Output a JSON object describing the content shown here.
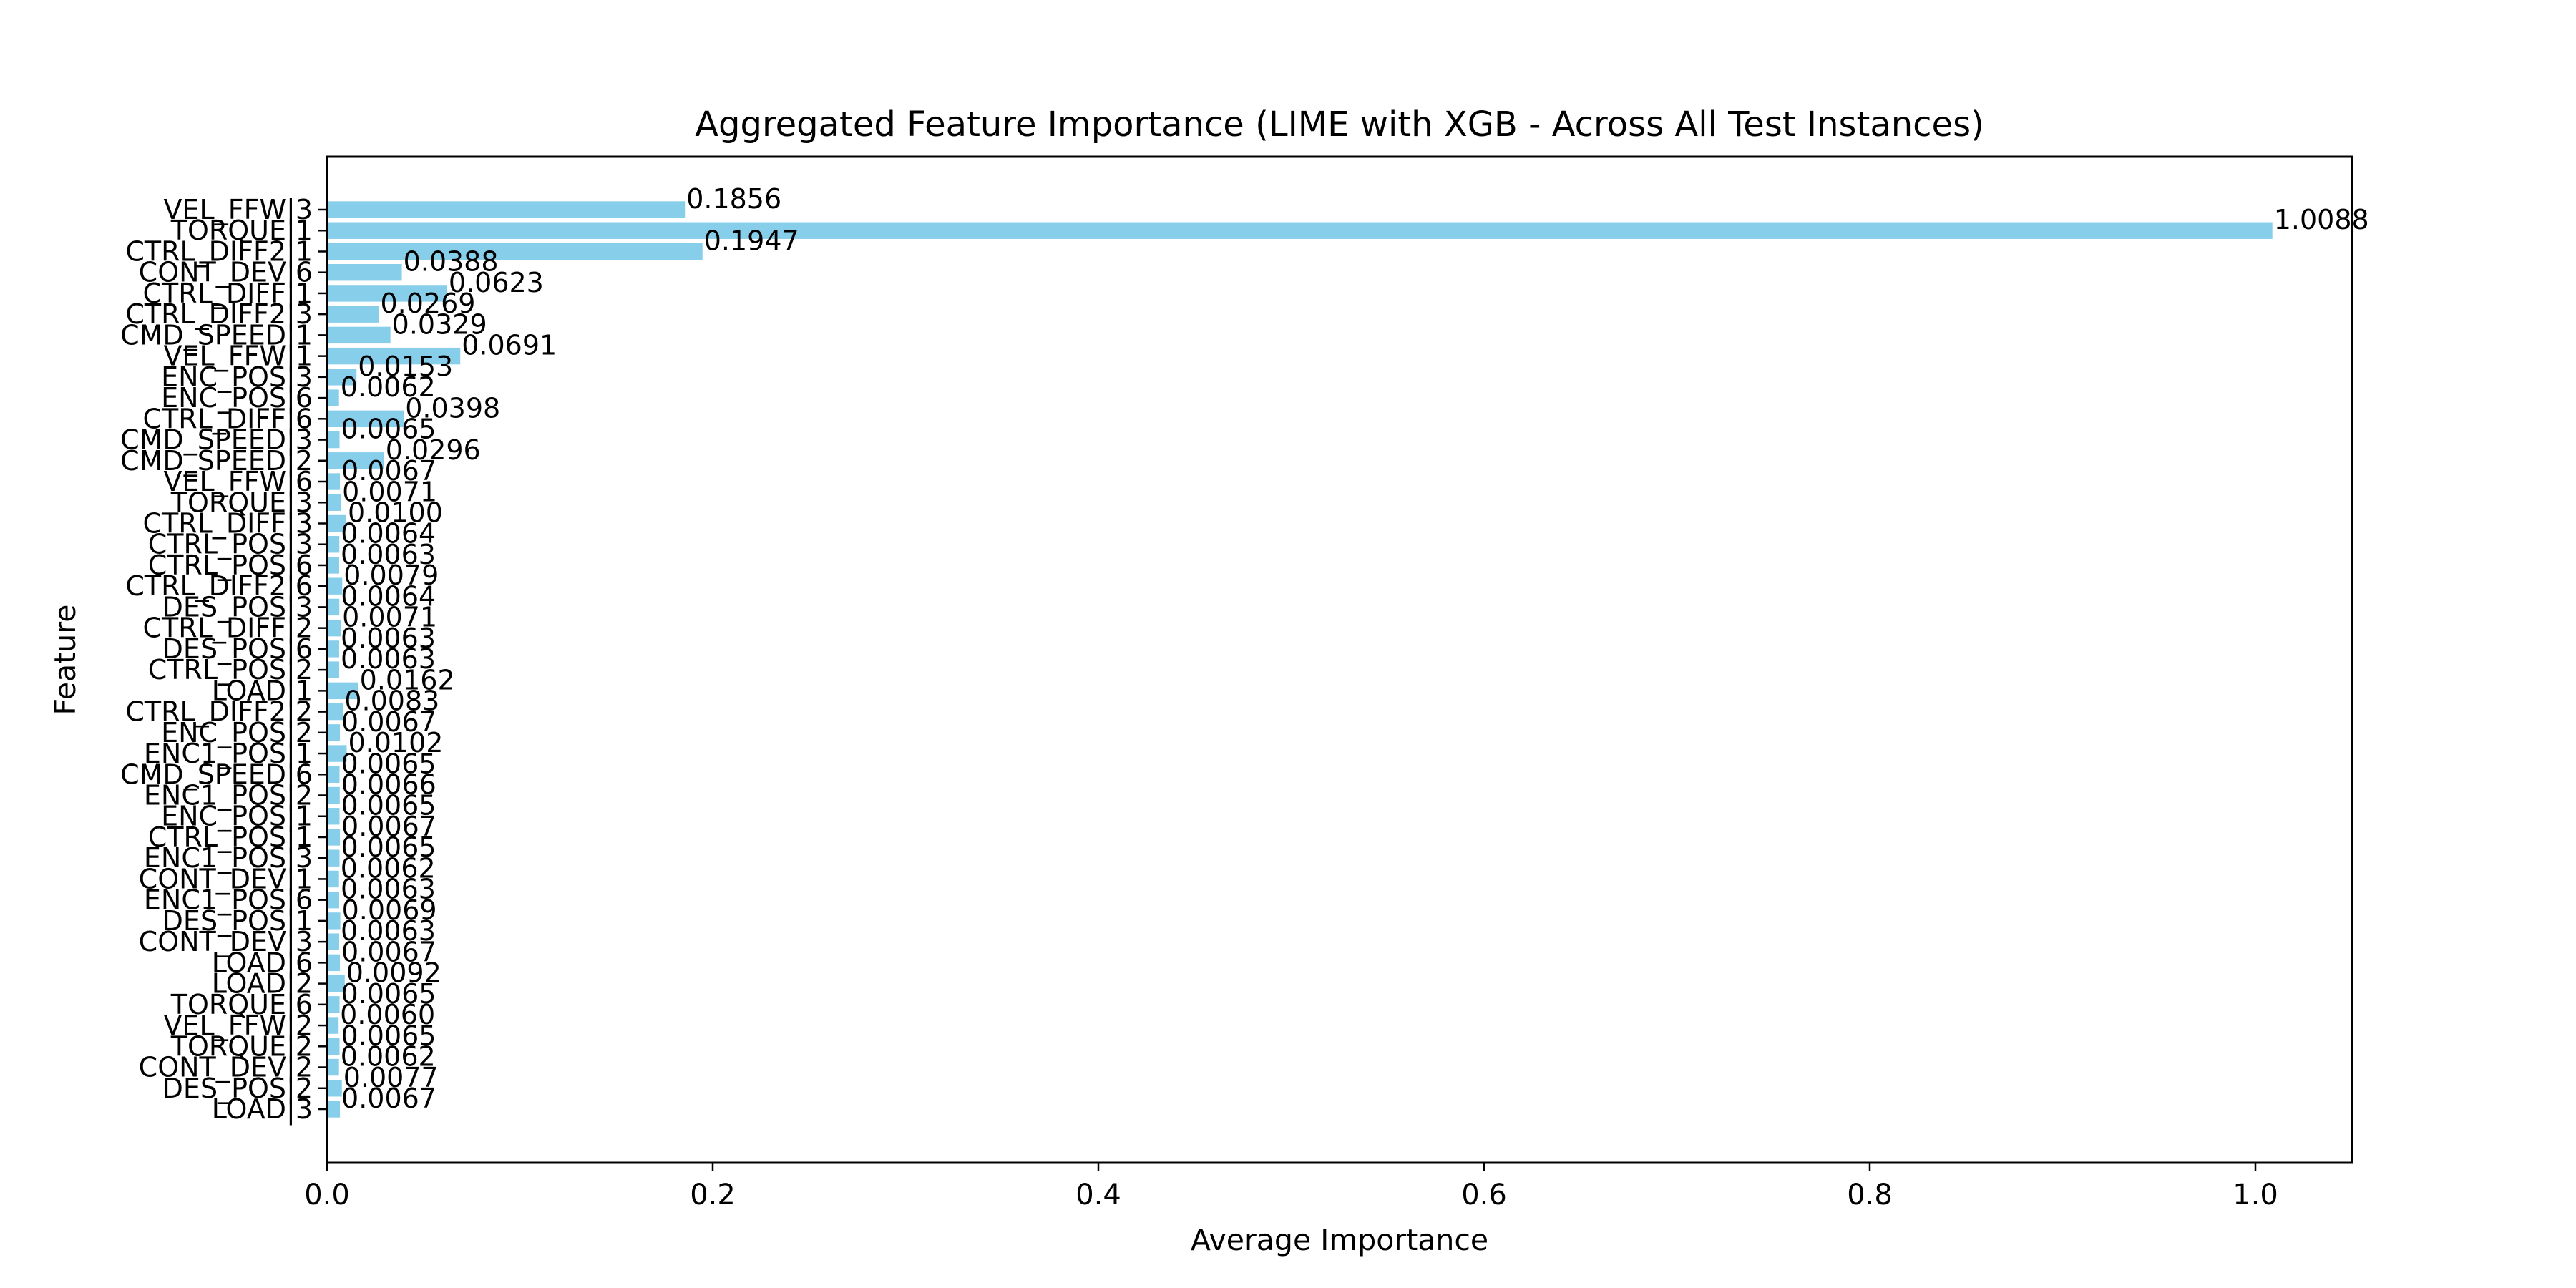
{
  "chart_data": {
    "type": "bar",
    "orientation": "horizontal",
    "title": "Aggregated Feature Importance (LIME with XGB - Across All Test Instances)",
    "xlabel": "Average Importance",
    "ylabel": "Feature",
    "xlim": [
      0,
      1.06
    ],
    "xticks": [
      0.0,
      0.2,
      0.4,
      0.6,
      0.8,
      1.0
    ],
    "xtick_labels": [
      "0.0",
      "0.2",
      "0.4",
      "0.6",
      "0.8",
      "1.0"
    ],
    "grid": false,
    "bar_color": "#87ceeb",
    "categories": [
      "VEL_FFW|3",
      "TORQUE|1",
      "CTRL_DIFF2|1",
      "CONT_DEV|6",
      "CTRL_DIFF|1",
      "CTRL_DIFF2|3",
      "CMD_SPEED|1",
      "VEL_FFW|1",
      "ENC_POS|3",
      "ENC_POS|6",
      "CTRL_DIFF|6",
      "CMD_SPEED|3",
      "CMD_SPEED|2",
      "VEL_FFW|6",
      "TORQUE|3",
      "CTRL_DIFF|3",
      "CTRL_POS|3",
      "CTRL_POS|6",
      "CTRL_DIFF2|6",
      "DES_POS|3",
      "CTRL_DIFF|2",
      "DES_POS|6",
      "CTRL_POS|2",
      "LOAD|1",
      "CTRL_DIFF2|2",
      "ENC_POS|2",
      "ENC1_POS|1",
      "CMD_SPEED|6",
      "ENC1_POS|2",
      "ENC_POS|1",
      "CTRL_POS|1",
      "ENC1_POS|3",
      "CONT_DEV|1",
      "ENC1_POS|6",
      "DES_POS|1",
      "CONT_DEV|3",
      "LOAD|6",
      "LOAD|2",
      "TORQUE|6",
      "VEL_FFW|2",
      "TORQUE|2",
      "CONT_DEV|2",
      "DES_POS|2",
      "LOAD|3"
    ],
    "values": [
      0.1856,
      1.0088,
      0.1947,
      0.0388,
      0.0623,
      0.0269,
      0.0329,
      0.0691,
      0.0153,
      0.0062,
      0.0398,
      0.0065,
      0.0296,
      0.0067,
      0.0071,
      0.01,
      0.0064,
      0.0063,
      0.0079,
      0.0064,
      0.0071,
      0.0063,
      0.0063,
      0.0162,
      0.0083,
      0.0067,
      0.0102,
      0.0065,
      0.0066,
      0.0065,
      0.0067,
      0.0065,
      0.0062,
      0.0063,
      0.0069,
      0.0063,
      0.0067,
      0.0092,
      0.0065,
      0.006,
      0.0065,
      0.0062,
      0.0077,
      0.0067
    ],
    "value_labels": [
      "0.1856",
      "1.0088",
      "0.1947",
      "0.0388",
      "0.0623",
      "0.0269",
      "0.0329",
      "0.0691",
      "0.0153",
      "0.0062",
      "0.0398",
      "0.0065",
      "0.0296",
      "0.0067",
      "0.0071",
      "0.0100",
      "0.0064",
      "0.0063",
      "0.0079",
      "0.0064",
      "0.0071",
      "0.0063",
      "0.0063",
      "0.0162",
      "0.0083",
      "0.0067",
      "0.0102",
      "0.0065",
      "0.0066",
      "0.0065",
      "0.0067",
      "0.0065",
      "0.0062",
      "0.0063",
      "0.0069",
      "0.0063",
      "0.0067",
      "0.0092",
      "0.0065",
      "0.0060",
      "0.0065",
      "0.0062",
      "0.0077",
      "0.0067"
    ]
  }
}
